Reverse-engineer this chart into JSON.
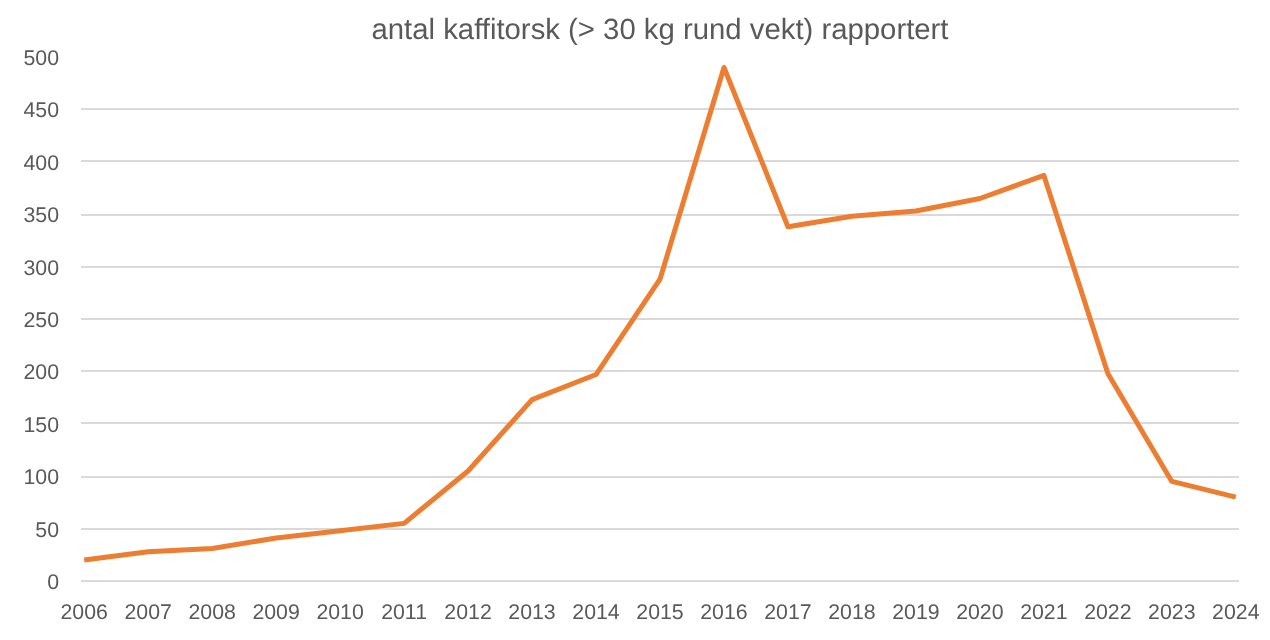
{
  "chart_data": {
    "type": "line",
    "title": "antal kaffitorsk (> 30 kg rund vekt) rapportert",
    "categories": [
      "2006",
      "2007",
      "2008",
      "2009",
      "2010",
      "2011",
      "2012",
      "2013",
      "2014",
      "2015",
      "2016",
      "2017",
      "2018",
      "2019",
      "2020",
      "2021",
      "2022",
      "2023",
      "2024"
    ],
    "series": [
      {
        "color": "#ed7d31",
        "values": [
          20,
          28,
          31,
          41,
          48,
          55,
          105,
          173,
          197,
          288,
          490,
          338,
          348,
          353,
          365,
          387,
          198,
          95,
          80
        ]
      }
    ],
    "ylim": [
      0,
      500
    ],
    "yticks": [
      0,
      50,
      100,
      150,
      200,
      250,
      300,
      350,
      400,
      450,
      500
    ],
    "grid": "y",
    "marker": "none",
    "line_style": "solid"
  }
}
